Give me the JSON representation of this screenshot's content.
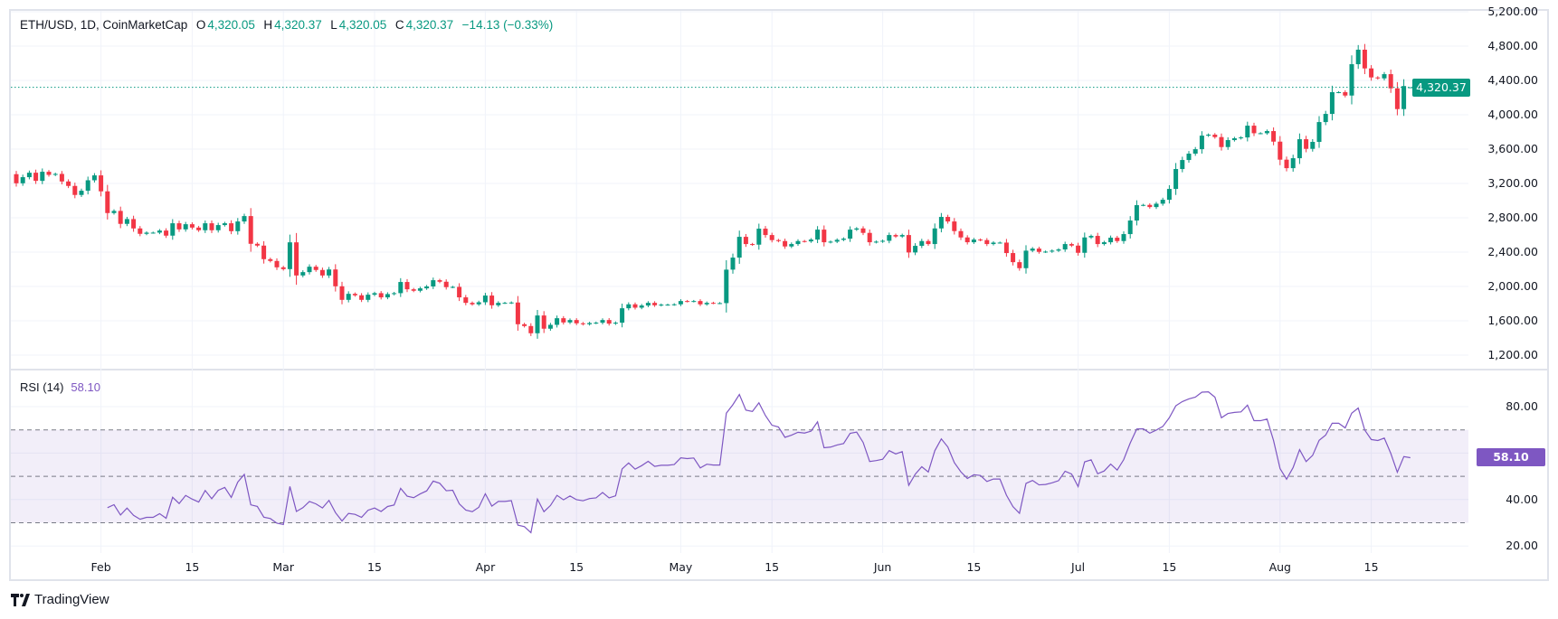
{
  "legend": {
    "symbol": "ETH/USD, 1D, CoinMarketCap",
    "o_label": "O",
    "o": "4,320.05",
    "h_label": "H",
    "h": "4,320.37",
    "l_label": "L",
    "l": "4,320.05",
    "c_label": "C",
    "c": "4,320.37",
    "change": "−14.13 (−0.33%)"
  },
  "rsi_legend": {
    "name": "RSI (14)",
    "value": "58.10"
  },
  "price_tag": "4,320.37",
  "rsi_tag": "58.10",
  "branding": "TradingView",
  "colors": {
    "up": "#089981",
    "down": "#F23645",
    "rsi": "#7E57C2",
    "rsi_band": "#7E57C2"
  },
  "chart_data": [
    {
      "type": "candlestick",
      "title": "ETH/USD, 1D, CoinMarketCap",
      "first_date": "01-19",
      "first_open": 3308,
      "closes": [
        3202,
        3273,
        3325,
        3230,
        3336,
        3300,
        3311,
        3223,
        3171,
        3066,
        3115,
        3237,
        3294,
        3108,
        2855,
        2880,
        2729,
        2785,
        2676,
        2613,
        2627,
        2627,
        2651,
        2592,
        2736,
        2665,
        2725,
        2686,
        2655,
        2736,
        2655,
        2715,
        2736,
        2644,
        2757,
        2820,
        2497,
        2476,
        2318,
        2297,
        2223,
        2202,
        2514,
        2128,
        2167,
        2230,
        2192,
        2128,
        2198,
        2002,
        1844,
        1914,
        1897,
        1844,
        1904,
        1922,
        1873,
        1911,
        1922,
        2052,
        1967,
        1950,
        1978,
        2000,
        2073,
        2055,
        1992,
        1995,
        1873,
        1809,
        1792,
        1816,
        1894,
        1781,
        1809,
        1809,
        1813,
        1560,
        1539,
        1455,
        1662,
        1508,
        1553,
        1630,
        1581,
        1609,
        1571,
        1560,
        1574,
        1578,
        1609,
        1567,
        1578,
        1746,
        1792,
        1753,
        1778,
        1809,
        1781,
        1788,
        1788,
        1792,
        1830,
        1827,
        1830,
        1792,
        1809,
        1806,
        1806,
        2196,
        2336,
        2578,
        2494,
        2487,
        2673,
        2599,
        2540,
        2529,
        2466,
        2494,
        2529,
        2525,
        2546,
        2662,
        2515,
        2522,
        2543,
        2557,
        2662,
        2676,
        2624,
        2515,
        2522,
        2532,
        2599,
        2582,
        2599,
        2396,
        2473,
        2529,
        2494,
        2676,
        2810,
        2757,
        2645,
        2571,
        2515,
        2546,
        2540,
        2494,
        2511,
        2511,
        2389,
        2283,
        2213,
        2417,
        2441,
        2403,
        2406,
        2417,
        2431,
        2494,
        2476,
        2392,
        2571,
        2589,
        2494,
        2515,
        2568,
        2529,
        2610,
        2768,
        2947,
        2950,
        2925,
        2964,
        3010,
        3136,
        3368,
        3473,
        3547,
        3599,
        3757,
        3768,
        3740,
        3624,
        3705,
        3726,
        3736,
        3873,
        3785,
        3785,
        3810,
        3687,
        3477,
        3378,
        3494,
        3715,
        3603,
        3684,
        3915,
        4010,
        4263,
        4263,
        4224,
        4589,
        4758,
        4540,
        4435,
        4424,
        4473,
        4308,
        4066,
        4334.5
      ],
      "last_bar": {
        "o": 4320.05,
        "h": 4320.37,
        "l": 4320.05,
        "c": 4320.37
      },
      "last_price": 4320.37,
      "ylim": [
        1100,
        5250
      ],
      "y_ticks": [
        "5,200.00",
        "4,800.00",
        "4,400.00",
        "4,000.00",
        "3,600.00",
        "3,200.00",
        "2,800.00",
        "2,400.00",
        "2,000.00",
        "1,600.00",
        "1,200.00"
      ],
      "y_tick_values": [
        5200,
        4800,
        4400,
        4000,
        3600,
        3200,
        2800,
        2400,
        2000,
        1600,
        1200
      ],
      "x_ticks": [
        {
          "label": "Feb",
          "date": "02-01"
        },
        {
          "label": "15",
          "date": "02-15"
        },
        {
          "label": "Mar",
          "date": "03-01"
        },
        {
          "label": "15",
          "date": "03-15"
        },
        {
          "label": "Apr",
          "date": "04-01"
        },
        {
          "label": "15",
          "date": "04-15"
        },
        {
          "label": "May",
          "date": "05-01"
        },
        {
          "label": "15",
          "date": "05-15"
        },
        {
          "label": "Jun",
          "date": "06-01"
        },
        {
          "label": "15",
          "date": "06-15"
        },
        {
          "label": "Jul",
          "date": "07-01"
        },
        {
          "label": "15",
          "date": "07-15"
        },
        {
          "label": "Aug",
          "date": "08-01"
        },
        {
          "label": "15",
          "date": "08-15"
        }
      ],
      "grid": true
    },
    {
      "type": "line",
      "title": "RSI (14)",
      "period": 14,
      "current": 58.1,
      "ylim": [
        20,
        100
      ],
      "y_ticks": [
        "80.00",
        "40.00",
        "20.00"
      ],
      "y_tick_values": [
        80,
        40,
        20
      ],
      "bands": [
        70,
        50,
        30
      ],
      "band_fill": [
        30,
        70
      ]
    }
  ]
}
